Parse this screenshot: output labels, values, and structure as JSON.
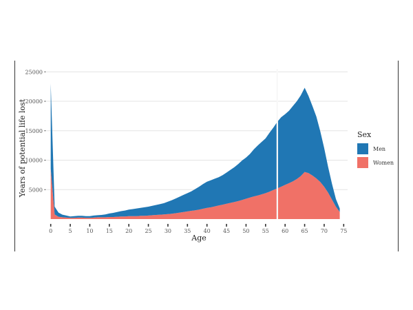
{
  "chart_data": {
    "type": "area",
    "stacked": true,
    "xlabel": "Age",
    "ylabel": "Years of potential life lost",
    "xlim": [
      -1,
      76
    ],
    "ylim": [
      0,
      25500
    ],
    "x_ticks": [
      0,
      5,
      10,
      15,
      20,
      25,
      30,
      35,
      40,
      45,
      50,
      55,
      60,
      65,
      70,
      75
    ],
    "y_ticks": [
      5000,
      10000,
      15000,
      20000,
      25000
    ],
    "y_tick_labels": [
      "5000",
      "10000",
      "15000",
      "20000",
      "25000"
    ],
    "grid": true,
    "reference_line_x": 58,
    "legend": {
      "title": "Sex",
      "placement": "right"
    },
    "x": [
      0,
      1,
      2,
      3,
      4,
      5,
      6,
      7,
      8,
      9,
      10,
      11,
      12,
      13,
      14,
      15,
      16,
      17,
      18,
      19,
      20,
      21,
      22,
      23,
      24,
      25,
      26,
      27,
      28,
      29,
      30,
      31,
      32,
      33,
      34,
      35,
      36,
      37,
      38,
      39,
      40,
      41,
      42,
      43,
      44,
      45,
      46,
      47,
      48,
      49,
      50,
      51,
      52,
      53,
      54,
      55,
      56,
      57,
      58,
      59,
      60,
      61,
      62,
      63,
      64,
      65,
      66,
      67,
      68,
      69,
      70,
      71,
      72,
      73,
      74
    ],
    "series": [
      {
        "name": "Women",
        "color": "#f07167",
        "values": [
          8500,
          800,
          400,
          300,
          250,
          200,
          200,
          250,
          250,
          200,
          200,
          250,
          300,
          300,
          300,
          350,
          350,
          400,
          450,
          450,
          500,
          500,
          500,
          550,
          550,
          600,
          650,
          700,
          750,
          800,
          850,
          900,
          1000,
          1100,
          1200,
          1300,
          1400,
          1500,
          1600,
          1750,
          1900,
          2000,
          2150,
          2300,
          2450,
          2600,
          2750,
          2900,
          3050,
          3250,
          3450,
          3650,
          3850,
          4000,
          4200,
          4400,
          4650,
          4950,
          5200,
          5500,
          5800,
          6100,
          6400,
          6800,
          7300,
          8000,
          7800,
          7400,
          6900,
          6300,
          5500,
          4500,
          3300,
          2100,
          1200
        ]
      },
      {
        "name": "Men",
        "color": "#2077b4",
        "values": [
          14500,
          1300,
          700,
          450,
          350,
          250,
          300,
          300,
          300,
          300,
          300,
          350,
          350,
          400,
          500,
          600,
          700,
          800,
          900,
          1000,
          1100,
          1200,
          1300,
          1350,
          1450,
          1500,
          1600,
          1700,
          1800,
          1900,
          2100,
          2300,
          2500,
          2700,
          2900,
          3100,
          3300,
          3600,
          3900,
          4200,
          4450,
          4600,
          4700,
          4800,
          5000,
          5300,
          5600,
          5900,
          6300,
          6700,
          7000,
          7400,
          8000,
          8500,
          8900,
          9300,
          10000,
          10600,
          11300,
          11800,
          12000,
          12300,
          12800,
          13200,
          13700,
          14300,
          13100,
          11800,
          10500,
          8600,
          6600,
          4400,
          2700,
          1300,
          600
        ]
      }
    ]
  },
  "colors": {
    "men": "#2077b4",
    "women": "#f07167",
    "gridline": "#e4e4e4",
    "reference_line": "#ffffff"
  }
}
